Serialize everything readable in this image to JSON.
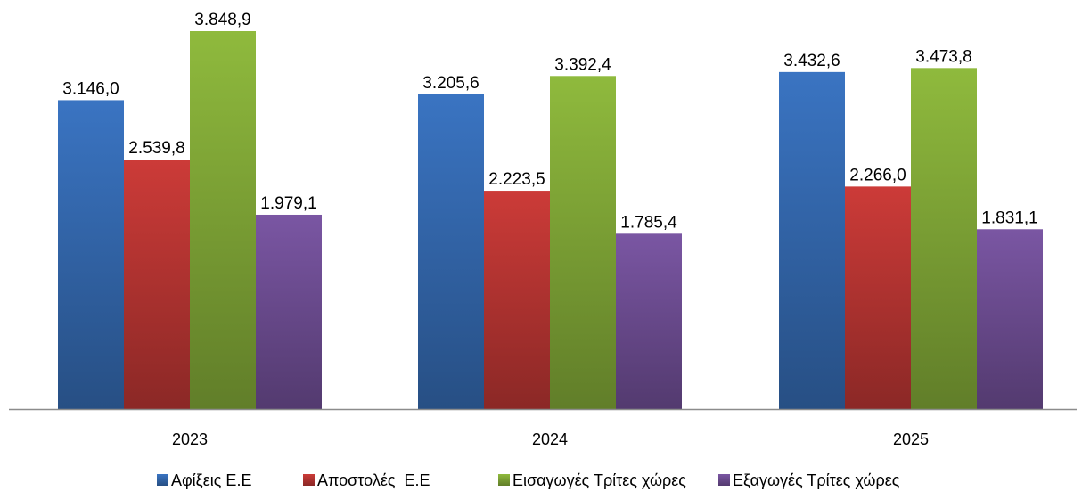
{
  "chart_data": {
    "type": "bar",
    "title": "",
    "xlabel": "",
    "ylabel": "",
    "categories": [
      "2023",
      "2024",
      "2025"
    ],
    "series": [
      {
        "name": "Αφίξεις Ε.Ε",
        "values": [
          3146.0,
          3205.6,
          3432.6
        ],
        "labels": [
          "3.146,0",
          "3.205,6",
          "3.432,6"
        ],
        "color": "#3a74c2"
      },
      {
        "name": "Αποστολές  Ε.Ε",
        "values": [
          2539.8,
          2223.5,
          2266.0
        ],
        "labels": [
          "2.539,8",
          "2.223,5",
          "2.266,0"
        ],
        "color": "#cc3b38"
      },
      {
        "name": "Εισαγωγές Τρίτες χώρες",
        "values": [
          3848.9,
          3392.4,
          3473.8
        ],
        "labels": [
          "3.848,9",
          "3.392,4",
          "3.473,8"
        ],
        "color": "#8fba3d"
      },
      {
        "name": "Εξαγωγές Τρίτες χώρες",
        "values": [
          1979.1,
          1785.4,
          1831.1
        ],
        "labels": [
          "1.979,1",
          "1.785,4",
          "1.831,1"
        ],
        "color": "#7a56a3"
      }
    ],
    "ylim": [
      0,
      4000
    ],
    "grid": false,
    "legend_position": "bottom"
  }
}
